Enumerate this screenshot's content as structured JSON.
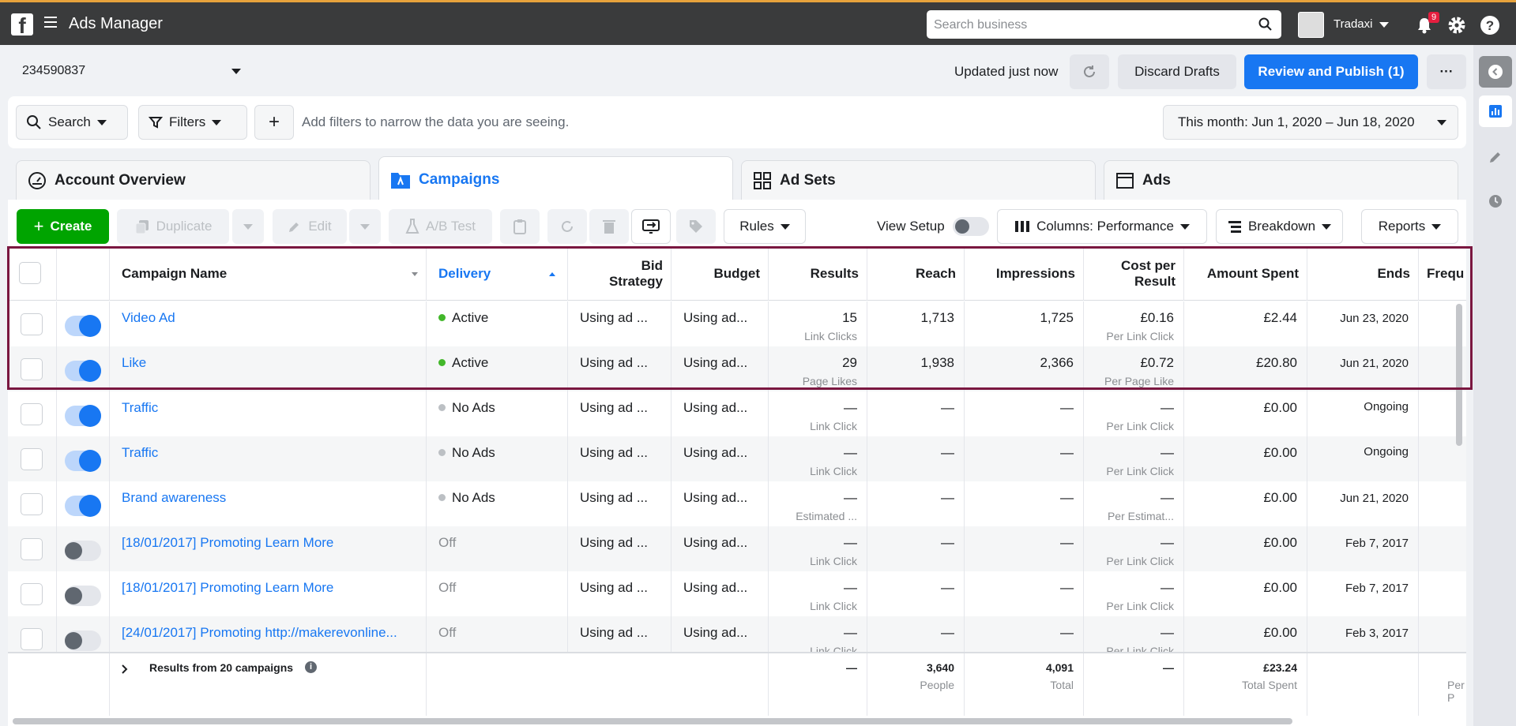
{
  "topbar": {
    "app_title": "Ads Manager",
    "search_placeholder": "Search business",
    "user_name": "Tradaxi",
    "notifications": "9",
    "help": "?"
  },
  "account": {
    "id": "234590837",
    "updated": "Updated just now",
    "discard": "Discard Drafts",
    "publish": "Review and Publish (1)",
    "more": "···"
  },
  "filters": {
    "search": "Search",
    "filters": "Filters",
    "add": "+",
    "hint": "Add filters to narrow the data you are seeing.",
    "date_range": "This month: Jun 1, 2020 – Jun 18, 2020"
  },
  "tabs": [
    {
      "label": "Account Overview"
    },
    {
      "label": "Campaigns"
    },
    {
      "label": "Ad Sets"
    },
    {
      "label": "Ads"
    }
  ],
  "toolbar": {
    "create": "Create",
    "duplicate": "Duplicate",
    "edit": "Edit",
    "ab_test": "A/B Test",
    "rules": "Rules",
    "view_setup": "View Setup",
    "columns": "Columns: Performance",
    "breakdown": "Breakdown",
    "reports": "Reports"
  },
  "columns": {
    "name": "Campaign Name",
    "delivery": "Delivery",
    "bid_a": "Bid",
    "bid_b": "Strategy",
    "budget": "Budget",
    "results": "Results",
    "reach": "Reach",
    "impressions": "Impressions",
    "cpr_a": "Cost per",
    "cpr_b": "Result",
    "spent": "Amount Spent",
    "ends": "Ends",
    "freq": "Frequ"
  },
  "rows": [
    {
      "name": "Video Ad",
      "on": true,
      "delivery": "Active",
      "status": "active",
      "bid": "Using ad ...",
      "budget": "Using ad...",
      "results": "15",
      "results_sub": "Link Clicks",
      "reach": "1,713",
      "impressions": "1,725",
      "cpr": "£0.16",
      "cpr_sub": "Per Link Click",
      "spent": "£2.44",
      "ends": "Jun 23, 2020"
    },
    {
      "name": "Like",
      "on": true,
      "delivery": "Active",
      "status": "active",
      "bid": "Using ad ...",
      "budget": "Using ad...",
      "results": "29",
      "results_sub": "Page Likes",
      "reach": "1,938",
      "impressions": "2,366",
      "cpr": "£0.72",
      "cpr_sub": "Per Page Like",
      "spent": "£20.80",
      "ends": "Jun 21, 2020"
    },
    {
      "name": "Traffic",
      "on": true,
      "delivery": "No Ads",
      "status": "noads",
      "bid": "Using ad ...",
      "budget": "Using ad...",
      "results": "—",
      "results_sub": "Link Click",
      "reach": "—",
      "impressions": "—",
      "cpr": "—",
      "cpr_sub": "Per Link Click",
      "spent": "£0.00",
      "ends": "Ongoing"
    },
    {
      "name": "Traffic",
      "on": true,
      "delivery": "No Ads",
      "status": "noads",
      "bid": "Using ad ...",
      "budget": "Using ad...",
      "results": "—",
      "results_sub": "Link Click",
      "reach": "—",
      "impressions": "—",
      "cpr": "—",
      "cpr_sub": "Per Link Click",
      "spent": "£0.00",
      "ends": "Ongoing"
    },
    {
      "name": "Brand awareness",
      "on": true,
      "delivery": "No Ads",
      "status": "noads",
      "bid": "Using ad ...",
      "budget": "Using ad...",
      "results": "—",
      "results_sub": "Estimated ...",
      "reach": "—",
      "impressions": "—",
      "cpr": "—",
      "cpr_sub": "Per Estimat...",
      "spent": "£0.00",
      "ends": "Jun 21, 2020"
    },
    {
      "name": "[18/01/2017] Promoting Learn More",
      "on": false,
      "delivery": "Off",
      "status": "off",
      "bid": "Using ad ...",
      "budget": "Using ad...",
      "results": "—",
      "results_sub": "Link Click",
      "reach": "—",
      "impressions": "—",
      "cpr": "—",
      "cpr_sub": "Per Link Click",
      "spent": "£0.00",
      "ends": "Feb 7, 2017"
    },
    {
      "name": "[18/01/2017] Promoting Learn More",
      "on": false,
      "delivery": "Off",
      "status": "off",
      "bid": "Using ad ...",
      "budget": "Using ad...",
      "results": "—",
      "results_sub": "Link Click",
      "reach": "—",
      "impressions": "—",
      "cpr": "—",
      "cpr_sub": "Per Link Click",
      "spent": "£0.00",
      "ends": "Feb 7, 2017"
    },
    {
      "name": "[24/01/2017] Promoting http://makerevonline...",
      "on": false,
      "delivery": "Off",
      "status": "off",
      "bid": "Using ad ...",
      "budget": "Using ad...",
      "results": "—",
      "results_sub": "Link Click",
      "reach": "—",
      "impressions": "—",
      "cpr": "—",
      "cpr_sub": "Per Link Click",
      "spent": "£0.00",
      "ends": "Feb 3, 2017"
    }
  ],
  "footer": {
    "label": "Results from 20 campaigns",
    "results": "—",
    "reach": "3,640",
    "reach_sub": "People",
    "impressions": "4,091",
    "impressions_sub": "Total",
    "cpr": "—",
    "spent": "£23.24",
    "spent_sub": "Total Spent",
    "freq_sub": "Per P"
  },
  "colors": {
    "accent": "#1877f2",
    "create": "#00a400",
    "active_dot": "#42b72a",
    "noads_dot": "#bcc0c4",
    "highlight": "#7a1740"
  }
}
